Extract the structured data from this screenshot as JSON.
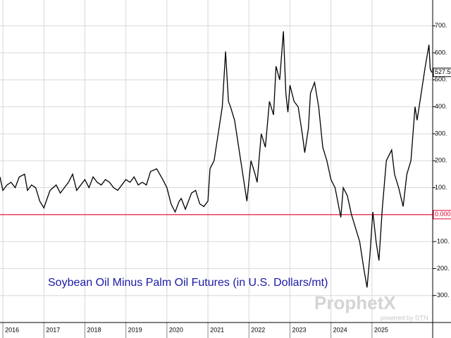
{
  "chart_data": {
    "type": "line",
    "title": "Soybean Oil Minus Palm Oil Futures (in U.S. Dollars/mt)",
    "watermark": "ProphetX",
    "watermark_sub": "powered by DTN",
    "x": [
      2015.93,
      2016.0,
      2016.1,
      2016.2,
      2016.3,
      2016.4,
      2016.53,
      2016.6,
      2016.7,
      2016.8,
      2016.9,
      2017.0,
      2017.08,
      2017.15,
      2017.3,
      2017.4,
      2017.5,
      2017.6,
      2017.7,
      2017.8,
      2017.9,
      2018.0,
      2018.1,
      2018.2,
      2018.3,
      2018.4,
      2018.5,
      2018.6,
      2018.7,
      2018.8,
      2018.9,
      2019.0,
      2019.1,
      2019.2,
      2019.3,
      2019.4,
      2019.5,
      2019.6,
      2019.75,
      2019.9,
      2020.0,
      2020.1,
      2020.2,
      2020.3,
      2020.35,
      2020.45,
      2020.5,
      2020.6,
      2020.7,
      2020.8,
      2020.9,
      2021.0,
      2021.05,
      2021.15,
      2021.25,
      2021.35,
      2021.43,
      2021.5,
      2021.55,
      2021.65,
      2021.75,
      2021.85,
      2021.9,
      2021.95,
      2022.05,
      2022.15,
      2022.2,
      2022.3,
      2022.4,
      2022.5,
      2022.6,
      2022.66,
      2022.75,
      2022.84,
      2022.9,
      2022.95,
      2023.0,
      2023.1,
      2023.2,
      2023.3,
      2023.36,
      2023.45,
      2023.5,
      2023.6,
      2023.7,
      2023.8,
      2023.9,
      2024.0,
      2024.1,
      2024.24,
      2024.3,
      2024.4,
      2024.5,
      2024.6,
      2024.7,
      2024.8,
      2024.88,
      2024.95,
      2025.02,
      2025.1,
      2025.17,
      2025.25,
      2025.35,
      2025.48,
      2025.55,
      2025.65,
      2025.76,
      2025.85,
      2025.95,
      2026.05,
      2026.1,
      2026.2,
      2026.3,
      2026.39,
      2026.42,
      2026.46
    ],
    "values": [
      140,
      90,
      110,
      120,
      100,
      140,
      150,
      90,
      110,
      100,
      50,
      25,
      60,
      90,
      110,
      80,
      100,
      120,
      150,
      90,
      110,
      130,
      100,
      140,
      120,
      110,
      130,
      120,
      100,
      90,
      110,
      130,
      120,
      140,
      110,
      120,
      110,
      160,
      170,
      130,
      100,
      40,
      10,
      50,
      60,
      20,
      40,
      80,
      90,
      40,
      30,
      50,
      170,
      200,
      300,
      400,
      605,
      420,
      400,
      350,
      250,
      150,
      100,
      50,
      200,
      150,
      120,
      300,
      250,
      420,
      370,
      550,
      500,
      680,
      450,
      380,
      480,
      420,
      400,
      300,
      230,
      320,
      450,
      490,
      400,
      250,
      200,
      130,
      100,
      -10,
      100,
      70,
      0,
      -50,
      -100,
      -200,
      -270,
      -150,
      10,
      -100,
      -170,
      20,
      200,
      240,
      150,
      100,
      30,
      150,
      200,
      400,
      350,
      450,
      550,
      630,
      540,
      527.5
    ],
    "color": "#000000",
    "xlim": [
      2015.93,
      2026.48
    ],
    "ylim": [
      -400,
      796
    ],
    "xticks": [
      2016,
      2017,
      2018,
      2019,
      2020,
      2021,
      2022,
      2023,
      2024,
      2025
    ],
    "yticks": [
      {
        "value": -300,
        "label": "-300."
      },
      {
        "value": -200,
        "label": "-200."
      },
      {
        "value": -100,
        "label": "-100."
      },
      {
        "value": 100,
        "label": "100."
      },
      {
        "value": 200,
        "label": "200."
      },
      {
        "value": 300,
        "label": "300."
      },
      {
        "value": 400,
        "label": "400."
      },
      {
        "value": 500,
        "label": "500."
      },
      {
        "value": 600,
        "label": "600."
      },
      {
        "value": 700,
        "label": "700."
      }
    ],
    "grid": true,
    "reference_line": {
      "value": 0,
      "color": "#e0002a"
    },
    "annotations": [
      {
        "value": 527.5,
        "label": "527.5",
        "color": "#000000"
      },
      {
        "value": 0,
        "label": "0.000",
        "color": "#e0002a"
      }
    ]
  }
}
